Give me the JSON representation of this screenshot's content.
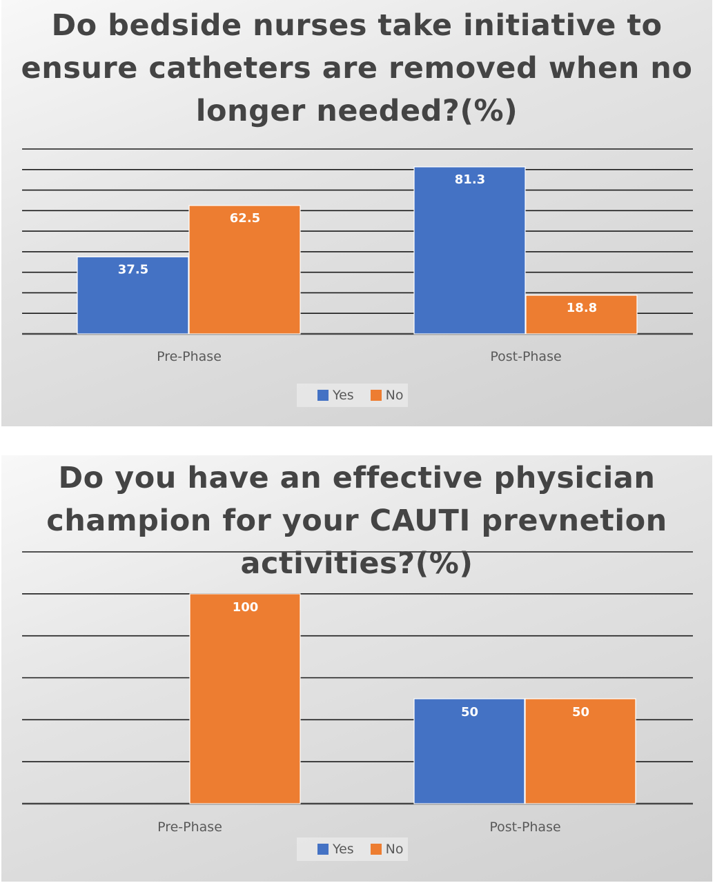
{
  "colors": {
    "yes": "#4472C4",
    "no": "#ED7D31",
    "grid": "#1a1a1a",
    "label": "#ffffff",
    "axis_text": "#595959"
  },
  "chart_data": [
    {
      "type": "bar",
      "title": "Do bedside nurses take initiative to ensure catheters are removed when no longer needed?(%)",
      "categories": [
        "Pre-Phase",
        "Post-Phase"
      ],
      "series": [
        {
          "name": "Yes",
          "values": [
            37.5,
            81.3
          ],
          "labels": [
            "37.5",
            "81.3"
          ]
        },
        {
          "name": "No",
          "values": [
            62.5,
            18.8
          ],
          "labels": [
            "62.5",
            "18.8"
          ]
        }
      ],
      "ylim": [
        0,
        90
      ],
      "grid": true,
      "gridlines": 9,
      "legend": "bottom"
    },
    {
      "type": "bar",
      "title": "Do you have an effective physician champion for your CAUTI prevnetion activities?(%)",
      "categories": [
        "Pre-Phase",
        "Post-Phase"
      ],
      "series": [
        {
          "name": "Yes",
          "values": [
            0,
            50
          ],
          "labels": [
            "",
            "50"
          ]
        },
        {
          "name": "No",
          "values": [
            100,
            50
          ],
          "labels": [
            "100",
            "50"
          ]
        }
      ],
      "ylim": [
        0,
        120
      ],
      "grid": true,
      "gridlines": 6,
      "legend": "bottom"
    }
  ]
}
